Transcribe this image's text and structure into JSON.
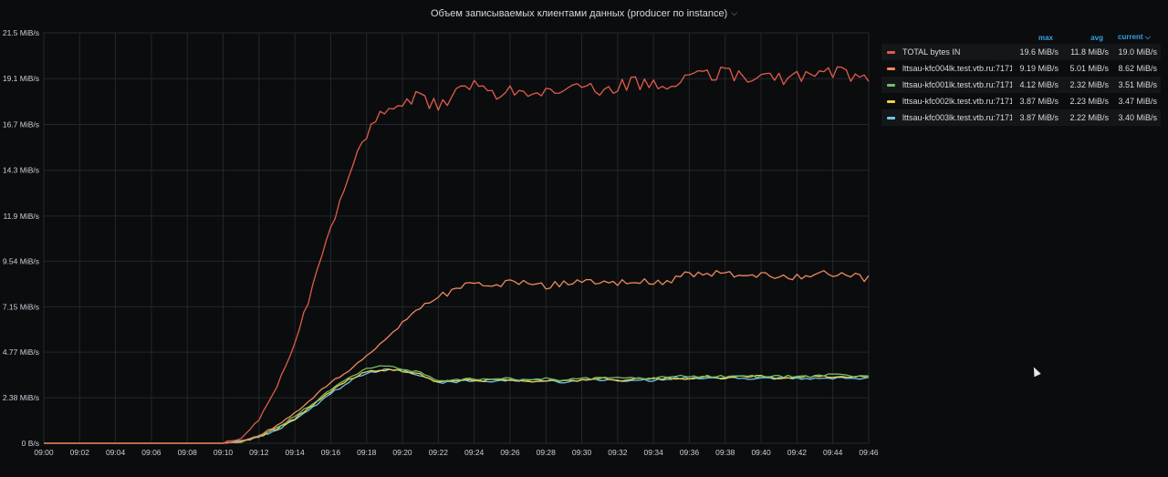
{
  "panel": {
    "title": "Объем записываемых клиентами данных (producer по instance)",
    "caret": "⌵"
  },
  "legend": {
    "headers": {
      "max": "max",
      "avg": "avg",
      "current": "current ⌵"
    },
    "rows": [
      {
        "name": "TOTAL bytes IN",
        "color": "#e05c4b",
        "max": "19.6 MiB/s",
        "avg": "11.8 MiB/s",
        "current": "19.0 MiB/s"
      },
      {
        "name": "lttsau-kfc004lk.test.vtb.ru:7171",
        "color": "#ef8a5e",
        "max": "9.19 MiB/s",
        "avg": "5.01 MiB/s",
        "current": "8.62 MiB/s"
      },
      {
        "name": "lttsau-kfc001lk.test.vtb.ru:7171",
        "color": "#73bf69",
        "max": "4.12 MiB/s",
        "avg": "2.32 MiB/s",
        "current": "3.51 MiB/s"
      },
      {
        "name": "lttsau-kfc002lk.test.vtb.ru:7171",
        "color": "#f2cc4d",
        "max": "3.87 MiB/s",
        "avg": "2.23 MiB/s",
        "current": "3.47 MiB/s"
      },
      {
        "name": "lttsau-kfc003lk.test.vtb.ru:7171",
        "color": "#6ec6e8",
        "max": "3.87 MiB/s",
        "avg": "2.22 MiB/s",
        "current": "3.40 MiB/s"
      }
    ]
  },
  "chart_data": {
    "type": "line",
    "title": "Объем записываемых клиентами данных (producer по instance)",
    "ylim": [
      0,
      21.5
    ],
    "xlim": [
      "09:00",
      "09:46"
    ],
    "yticks": [
      "0 B/s",
      "2.38 MiB/s",
      "4.77 MiB/s",
      "7.15 MiB/s",
      "9.54 MiB/s",
      "11.9 MiB/s",
      "14.3 MiB/s",
      "16.7 MiB/s",
      "19.1 MiB/s",
      "21.5 MiB/s"
    ],
    "ytick_values": [
      0,
      2.38,
      4.77,
      7.15,
      9.54,
      11.9,
      14.3,
      16.7,
      19.1,
      21.5
    ],
    "xticks": [
      "09:00",
      "09:02",
      "09:04",
      "09:06",
      "09:08",
      "09:10",
      "09:12",
      "09:14",
      "09:16",
      "09:18",
      "09:20",
      "09:22",
      "09:24",
      "09:26",
      "09:28",
      "09:30",
      "09:32",
      "09:34",
      "09:36",
      "09:38",
      "09:40",
      "09:42",
      "09:44",
      "09:46"
    ],
    "grid": true,
    "legend_position": "right",
    "series": [
      {
        "name": "TOTAL bytes IN",
        "color": "#e05c4b",
        "points": [
          [
            "09:00",
            0
          ],
          [
            "09:10",
            0
          ],
          [
            "09:11",
            0.3
          ],
          [
            "09:12",
            1.2
          ],
          [
            "09:13",
            3.0
          ],
          [
            "09:14",
            5.2
          ],
          [
            "09:15",
            8.2
          ],
          [
            "09:16",
            11.2
          ],
          [
            "09:17",
            14.0
          ],
          [
            "09:18",
            16.3
          ],
          [
            "09:19",
            17.5
          ],
          [
            "09:20",
            18.0
          ],
          [
            "09:21",
            18.1
          ],
          [
            "09:22",
            17.6
          ],
          [
            "09:23",
            18.3
          ],
          [
            "09:24",
            18.7
          ],
          [
            "09:25",
            18.2
          ],
          [
            "09:26",
            18.6
          ],
          [
            "09:27",
            18.5
          ],
          [
            "09:28",
            18.4
          ],
          [
            "09:29",
            18.6
          ],
          [
            "09:30",
            18.8
          ],
          [
            "09:31",
            18.5
          ],
          [
            "09:32",
            18.7
          ],
          [
            "09:33",
            18.9
          ],
          [
            "09:34",
            18.7
          ],
          [
            "09:35",
            18.9
          ],
          [
            "09:36",
            19.2
          ],
          [
            "09:37",
            19.3
          ],
          [
            "09:38",
            19.4
          ],
          [
            "09:39",
            19.1
          ],
          [
            "09:40",
            19.3
          ],
          [
            "09:41",
            19.1
          ],
          [
            "09:42",
            19.2
          ],
          [
            "09:43",
            19.3
          ],
          [
            "09:44",
            19.5
          ],
          [
            "09:45",
            19.3
          ],
          [
            "09:46",
            19.0
          ]
        ]
      },
      {
        "name": "lttsau-kfc004lk.test.vtb.ru:7171",
        "color": "#ef8a5e",
        "points": [
          [
            "09:00",
            0
          ],
          [
            "09:10",
            0
          ],
          [
            "09:11",
            0.1
          ],
          [
            "09:12",
            0.4
          ],
          [
            "09:13",
            0.9
          ],
          [
            "09:14",
            1.6
          ],
          [
            "09:15",
            2.4
          ],
          [
            "09:16",
            3.2
          ],
          [
            "09:17",
            3.8
          ],
          [
            "09:18",
            4.6
          ],
          [
            "09:19",
            5.4
          ],
          [
            "09:20",
            6.3
          ],
          [
            "09:21",
            7.2
          ],
          [
            "09:22",
            7.7
          ],
          [
            "09:23",
            8.0
          ],
          [
            "09:24",
            8.4
          ],
          [
            "09:25",
            8.2
          ],
          [
            "09:26",
            8.4
          ],
          [
            "09:27",
            8.5
          ],
          [
            "09:28",
            8.2
          ],
          [
            "09:29",
            8.4
          ],
          [
            "09:30",
            8.5
          ],
          [
            "09:31",
            8.4
          ],
          [
            "09:32",
            8.4
          ],
          [
            "09:33",
            8.5
          ],
          [
            "09:34",
            8.4
          ],
          [
            "09:35",
            8.6
          ],
          [
            "09:36",
            8.9
          ],
          [
            "09:37",
            8.8
          ],
          [
            "09:38",
            8.9
          ],
          [
            "09:39",
            8.7
          ],
          [
            "09:40",
            8.8
          ],
          [
            "09:41",
            8.8
          ],
          [
            "09:42",
            8.7
          ],
          [
            "09:43",
            8.8
          ],
          [
            "09:44",
            8.9
          ],
          [
            "09:45",
            8.8
          ],
          [
            "09:46",
            8.62
          ]
        ]
      },
      {
        "name": "lttsau-kfc001lk.test.vtb.ru:7171",
        "color": "#73bf69",
        "points": [
          [
            "09:00",
            0
          ],
          [
            "09:10",
            0
          ],
          [
            "09:11",
            0.1
          ],
          [
            "09:12",
            0.4
          ],
          [
            "09:13",
            0.8
          ],
          [
            "09:14",
            1.4
          ],
          [
            "09:15",
            2.1
          ],
          [
            "09:16",
            2.8
          ],
          [
            "09:17",
            3.4
          ],
          [
            "09:18",
            3.9
          ],
          [
            "09:19",
            4.1
          ],
          [
            "09:20",
            3.9
          ],
          [
            "09:21",
            3.7
          ],
          [
            "09:22",
            3.3
          ],
          [
            "09:23",
            3.3
          ],
          [
            "09:24",
            3.4
          ],
          [
            "09:25",
            3.3
          ],
          [
            "09:26",
            3.4
          ],
          [
            "09:27",
            3.3
          ],
          [
            "09:28",
            3.4
          ],
          [
            "09:29",
            3.3
          ],
          [
            "09:30",
            3.4
          ],
          [
            "09:31",
            3.4
          ],
          [
            "09:32",
            3.4
          ],
          [
            "09:33",
            3.4
          ],
          [
            "09:34",
            3.4
          ],
          [
            "09:35",
            3.5
          ],
          [
            "09:36",
            3.5
          ],
          [
            "09:37",
            3.5
          ],
          [
            "09:38",
            3.5
          ],
          [
            "09:39",
            3.5
          ],
          [
            "09:40",
            3.5
          ],
          [
            "09:41",
            3.5
          ],
          [
            "09:42",
            3.5
          ],
          [
            "09:43",
            3.5
          ],
          [
            "09:44",
            3.6
          ],
          [
            "09:45",
            3.5
          ],
          [
            "09:46",
            3.51
          ]
        ]
      },
      {
        "name": "lttsau-kfc002lk.test.vtb.ru:7171",
        "color": "#f2cc4d",
        "points": [
          [
            "09:00",
            0
          ],
          [
            "09:10",
            0
          ],
          [
            "09:11",
            0.1
          ],
          [
            "09:12",
            0.35
          ],
          [
            "09:13",
            0.75
          ],
          [
            "09:14",
            1.3
          ],
          [
            "09:15",
            2.0
          ],
          [
            "09:16",
            2.7
          ],
          [
            "09:17",
            3.3
          ],
          [
            "09:18",
            3.8
          ],
          [
            "09:19",
            3.85
          ],
          [
            "09:20",
            3.8
          ],
          [
            "09:21",
            3.6
          ],
          [
            "09:22",
            3.2
          ],
          [
            "09:23",
            3.3
          ],
          [
            "09:24",
            3.3
          ],
          [
            "09:25",
            3.3
          ],
          [
            "09:26",
            3.3
          ],
          [
            "09:27",
            3.2
          ],
          [
            "09:28",
            3.3
          ],
          [
            "09:29",
            3.3
          ],
          [
            "09:30",
            3.3
          ],
          [
            "09:31",
            3.4
          ],
          [
            "09:32",
            3.3
          ],
          [
            "09:33",
            3.4
          ],
          [
            "09:34",
            3.4
          ],
          [
            "09:35",
            3.4
          ],
          [
            "09:36",
            3.4
          ],
          [
            "09:37",
            3.5
          ],
          [
            "09:38",
            3.4
          ],
          [
            "09:39",
            3.5
          ],
          [
            "09:40",
            3.5
          ],
          [
            "09:41",
            3.4
          ],
          [
            "09:42",
            3.5
          ],
          [
            "09:43",
            3.5
          ],
          [
            "09:44",
            3.5
          ],
          [
            "09:45",
            3.5
          ],
          [
            "09:46",
            3.47
          ]
        ]
      },
      {
        "name": "lttsau-kfc003lk.test.vtb.ru:7171",
        "color": "#6ec6e8",
        "points": [
          [
            "09:00",
            0
          ],
          [
            "09:10",
            0
          ],
          [
            "09:11",
            0.1
          ],
          [
            "09:12",
            0.35
          ],
          [
            "09:13",
            0.7
          ],
          [
            "09:14",
            1.25
          ],
          [
            "09:15",
            1.9
          ],
          [
            "09:16",
            2.6
          ],
          [
            "09:17",
            3.2
          ],
          [
            "09:18",
            3.7
          ],
          [
            "09:19",
            3.85
          ],
          [
            "09:20",
            3.8
          ],
          [
            "09:21",
            3.5
          ],
          [
            "09:22",
            3.2
          ],
          [
            "09:23",
            3.2
          ],
          [
            "09:24",
            3.3
          ],
          [
            "09:25",
            3.2
          ],
          [
            "09:26",
            3.3
          ],
          [
            "09:27",
            3.3
          ],
          [
            "09:28",
            3.3
          ],
          [
            "09:29",
            3.2
          ],
          [
            "09:30",
            3.3
          ],
          [
            "09:31",
            3.3
          ],
          [
            "09:32",
            3.3
          ],
          [
            "09:33",
            3.3
          ],
          [
            "09:34",
            3.3
          ],
          [
            "09:35",
            3.4
          ],
          [
            "09:36",
            3.4
          ],
          [
            "09:37",
            3.4
          ],
          [
            "09:38",
            3.4
          ],
          [
            "09:39",
            3.4
          ],
          [
            "09:40",
            3.4
          ],
          [
            "09:41",
            3.4
          ],
          [
            "09:42",
            3.4
          ],
          [
            "09:43",
            3.4
          ],
          [
            "09:44",
            3.4
          ],
          [
            "09:45",
            3.4
          ],
          [
            "09:46",
            3.4
          ]
        ]
      }
    ]
  }
}
